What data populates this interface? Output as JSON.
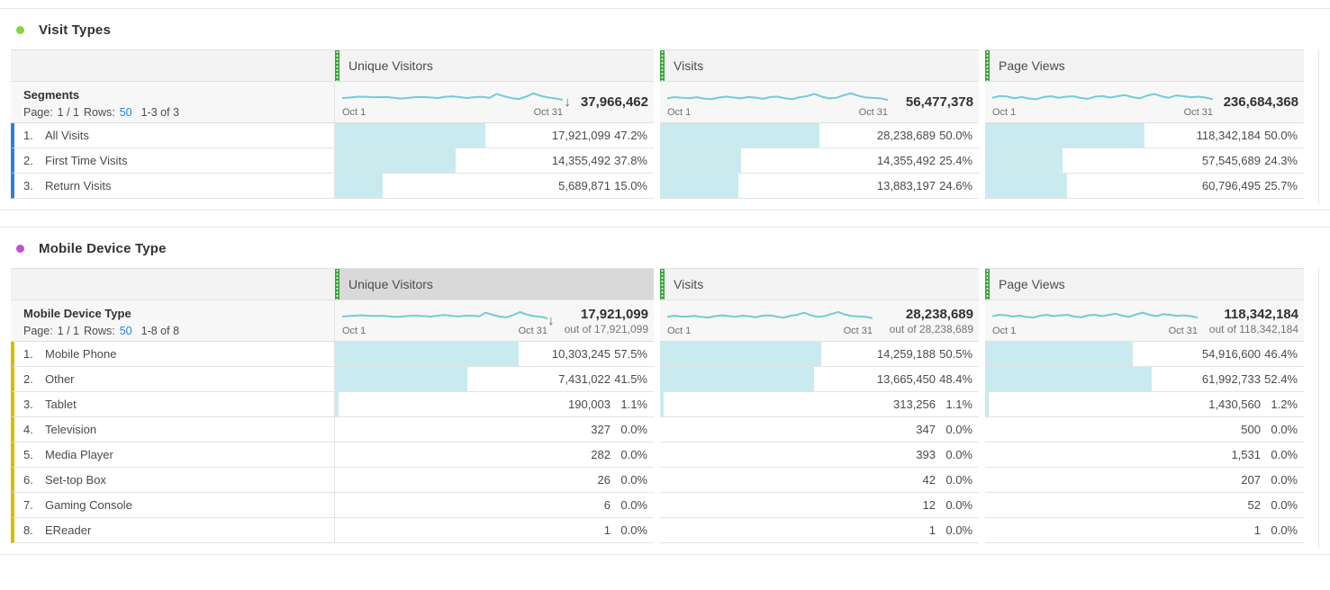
{
  "colors": {
    "sparkline": "#74cbd6",
    "bar": "#c9eaef",
    "handle": "#3da53d",
    "link": "#2680eb",
    "visit_types_dot": "#86d63f",
    "visit_types_row_accent": "#2f7fd6",
    "mobile_dot": "#c44fd4",
    "mobile_row_accent": "#dcba00"
  },
  "icons": {
    "sort_desc": "↓"
  },
  "tables": [
    {
      "title": "Visit Types",
      "left_header": {
        "name": "Segments",
        "page_label": "Page:",
        "page_value": "1 / 1",
        "rows_label": "Rows:",
        "rows_value": "50",
        "range": "1-3 of 3"
      },
      "columns": [
        {
          "label": "Unique Visitors",
          "sorted": true,
          "total": "37,966,462",
          "x_start": "Oct 1",
          "x_end": "Oct 31",
          "sparkline": [
            0.44,
            0.47,
            0.52,
            0.53,
            0.5,
            0.49,
            0.51,
            0.46,
            0.41,
            0.45,
            0.5,
            0.51,
            0.48,
            0.44,
            0.52,
            0.55,
            0.5,
            0.44,
            0.5,
            0.52,
            0.46,
            0.7,
            0.56,
            0.44,
            0.38,
            0.53,
            0.74,
            0.58,
            0.48,
            0.42,
            0.33
          ]
        },
        {
          "label": "Visits",
          "sorted": false,
          "total": "56,477,378",
          "x_start": "Oct 1",
          "x_end": "Oct 31",
          "sparkline": [
            0.42,
            0.5,
            0.46,
            0.43,
            0.49,
            0.41,
            0.37,
            0.47,
            0.53,
            0.48,
            0.42,
            0.51,
            0.47,
            0.39,
            0.51,
            0.53,
            0.43,
            0.37,
            0.49,
            0.56,
            0.7,
            0.53,
            0.42,
            0.46,
            0.62,
            0.74,
            0.58,
            0.48,
            0.45,
            0.42,
            0.33
          ]
        },
        {
          "label": "Page Views",
          "sorted": false,
          "total": "236,684,368",
          "x_start": "Oct 1",
          "x_end": "Oct 31",
          "sparkline": [
            0.46,
            0.57,
            0.54,
            0.43,
            0.51,
            0.41,
            0.37,
            0.51,
            0.56,
            0.46,
            0.53,
            0.56,
            0.45,
            0.39,
            0.53,
            0.57,
            0.47,
            0.56,
            0.63,
            0.51,
            0.42,
            0.59,
            0.7,
            0.56,
            0.46,
            0.61,
            0.56,
            0.49,
            0.53,
            0.47,
            0.37
          ]
        }
      ],
      "rows": [
        {
          "index": "1.",
          "name": "All Visits",
          "cells": [
            {
              "value": "17,921,099",
              "pct": "47.2%",
              "bar": 47.2
            },
            {
              "value": "28,238,689",
              "pct": "50.0%",
              "bar": 50.0
            },
            {
              "value": "118,342,184",
              "pct": "50.0%",
              "bar": 50.0
            }
          ]
        },
        {
          "index": "2.",
          "name": "First Time Visits",
          "cells": [
            {
              "value": "14,355,492",
              "pct": "37.8%",
              "bar": 37.8
            },
            {
              "value": "14,355,492",
              "pct": "25.4%",
              "bar": 25.4
            },
            {
              "value": "57,545,689",
              "pct": "24.3%",
              "bar": 24.3
            }
          ]
        },
        {
          "index": "3.",
          "name": "Return Visits",
          "cells": [
            {
              "value": "5,689,871",
              "pct": "15.0%",
              "bar": 15.0
            },
            {
              "value": "13,883,197",
              "pct": "24.6%",
              "bar": 24.6
            },
            {
              "value": "60,796,495",
              "pct": "25.7%",
              "bar": 25.7
            }
          ]
        }
      ]
    },
    {
      "title": "Mobile Device Type",
      "left_header": {
        "name": "Mobile Device Type",
        "page_label": "Page:",
        "page_value": "1 / 1",
        "rows_label": "Rows:",
        "rows_value": "50",
        "range": "1-8 of 8"
      },
      "columns": [
        {
          "label": "Unique Visitors",
          "sorted": true,
          "selected": true,
          "total": "17,921,099",
          "out_of": "out of 17,921,099",
          "x_start": "Oct 1",
          "x_end": "Oct 31",
          "sparkline": [
            0.45,
            0.48,
            0.51,
            0.52,
            0.49,
            0.48,
            0.5,
            0.45,
            0.42,
            0.46,
            0.5,
            0.5,
            0.47,
            0.44,
            0.51,
            0.54,
            0.49,
            0.45,
            0.5,
            0.51,
            0.46,
            0.69,
            0.55,
            0.44,
            0.39,
            0.54,
            0.73,
            0.57,
            0.47,
            0.43,
            0.34
          ]
        },
        {
          "label": "Visits",
          "sorted": false,
          "total": "28,238,689",
          "out_of": "out of 28,238,689",
          "x_start": "Oct 1",
          "x_end": "Oct 31",
          "sparkline": [
            0.43,
            0.5,
            0.45,
            0.44,
            0.49,
            0.42,
            0.38,
            0.47,
            0.52,
            0.47,
            0.43,
            0.51,
            0.46,
            0.4,
            0.51,
            0.52,
            0.44,
            0.38,
            0.49,
            0.55,
            0.69,
            0.52,
            0.43,
            0.47,
            0.61,
            0.73,
            0.57,
            0.48,
            0.45,
            0.43,
            0.34
          ]
        },
        {
          "label": "Page Views",
          "sorted": false,
          "total": "118,342,184",
          "out_of": "out of 118,342,184",
          "x_start": "Oct 1",
          "x_end": "Oct 31",
          "sparkline": [
            0.47,
            0.56,
            0.53,
            0.44,
            0.51,
            0.42,
            0.38,
            0.51,
            0.55,
            0.47,
            0.52,
            0.55,
            0.45,
            0.4,
            0.52,
            0.56,
            0.47,
            0.55,
            0.62,
            0.5,
            0.43,
            0.58,
            0.69,
            0.55,
            0.47,
            0.6,
            0.55,
            0.49,
            0.52,
            0.47,
            0.38
          ]
        }
      ],
      "rows": [
        {
          "index": "1.",
          "name": "Mobile Phone",
          "cells": [
            {
              "value": "10,303,245",
              "pct": "57.5%",
              "bar": 57.5
            },
            {
              "value": "14,259,188",
              "pct": "50.5%",
              "bar": 50.5
            },
            {
              "value": "54,916,600",
              "pct": "46.4%",
              "bar": 46.4
            }
          ]
        },
        {
          "index": "2.",
          "name": "Other",
          "cells": [
            {
              "value": "7,431,022",
              "pct": "41.5%",
              "bar": 41.5
            },
            {
              "value": "13,665,450",
              "pct": "48.4%",
              "bar": 48.4
            },
            {
              "value": "61,992,733",
              "pct": "52.4%",
              "bar": 52.4
            }
          ]
        },
        {
          "index": "3.",
          "name": "Tablet",
          "cells": [
            {
              "value": "190,003",
              "pct": "1.1%",
              "bar": 1.1
            },
            {
              "value": "313,256",
              "pct": "1.1%",
              "bar": 1.1
            },
            {
              "value": "1,430,560",
              "pct": "1.2%",
              "bar": 1.2
            }
          ]
        },
        {
          "index": "4.",
          "name": "Television",
          "cells": [
            {
              "value": "327",
              "pct": "0.0%",
              "bar": 0
            },
            {
              "value": "347",
              "pct": "0.0%",
              "bar": 0
            },
            {
              "value": "500",
              "pct": "0.0%",
              "bar": 0
            }
          ]
        },
        {
          "index": "5.",
          "name": "Media Player",
          "cells": [
            {
              "value": "282",
              "pct": "0.0%",
              "bar": 0
            },
            {
              "value": "393",
              "pct": "0.0%",
              "bar": 0
            },
            {
              "value": "1,531",
              "pct": "0.0%",
              "bar": 0
            }
          ]
        },
        {
          "index": "6.",
          "name": "Set-top Box",
          "cells": [
            {
              "value": "26",
              "pct": "0.0%",
              "bar": 0
            },
            {
              "value": "42",
              "pct": "0.0%",
              "bar": 0
            },
            {
              "value": "207",
              "pct": "0.0%",
              "bar": 0
            }
          ]
        },
        {
          "index": "7.",
          "name": "Gaming Console",
          "cells": [
            {
              "value": "6",
              "pct": "0.0%",
              "bar": 0
            },
            {
              "value": "12",
              "pct": "0.0%",
              "bar": 0
            },
            {
              "value": "52",
              "pct": "0.0%",
              "bar": 0
            }
          ]
        },
        {
          "index": "8.",
          "name": "EReader",
          "cells": [
            {
              "value": "1",
              "pct": "0.0%",
              "bar": 0
            },
            {
              "value": "1",
              "pct": "0.0%",
              "bar": 0
            },
            {
              "value": "1",
              "pct": "0.0%",
              "bar": 0
            }
          ]
        }
      ]
    }
  ]
}
